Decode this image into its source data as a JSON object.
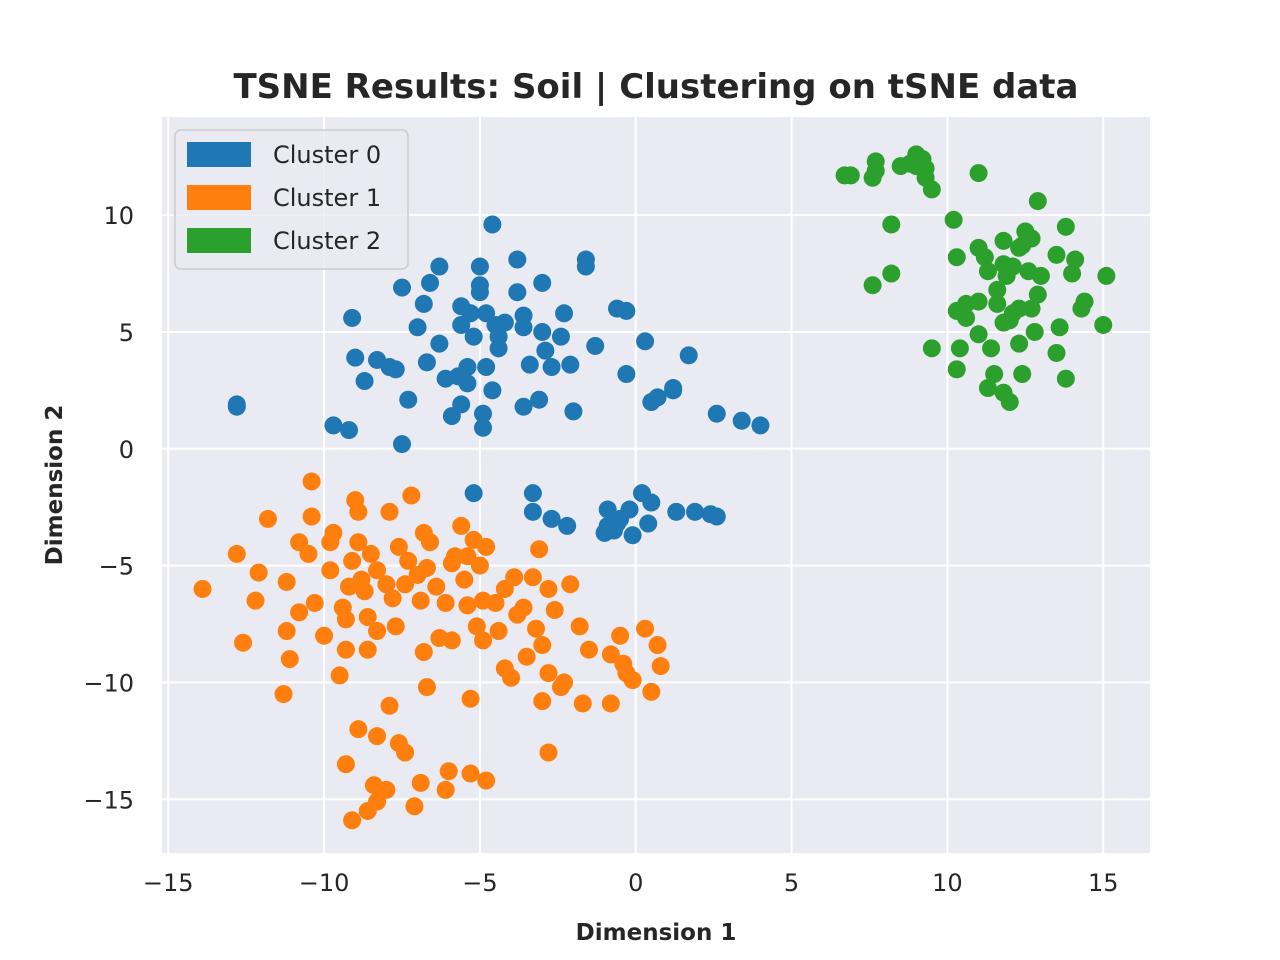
{
  "chart_data": {
    "type": "scatter",
    "title": "TSNE Results: Soil | Clustering on tSNE data",
    "xlabel": "Dimension 1",
    "ylabel": "Dimension 2",
    "xlim": [
      -15.2,
      16.5
    ],
    "ylim": [
      -17.3,
      14.2
    ],
    "xticks": [
      -15,
      -10,
      -5,
      0,
      5,
      10,
      15
    ],
    "yticks": [
      -15,
      -10,
      -5,
      0,
      5,
      10
    ],
    "xtick_labels": [
      "−15",
      "−10",
      "−5",
      "0",
      "5",
      "10",
      "15"
    ],
    "ytick_labels": [
      "−15",
      "−10",
      "−5",
      "0",
      "5",
      "10"
    ],
    "grid": true,
    "legend_position": "top-left",
    "background_color": "#eaeaf2",
    "series": [
      {
        "name": "Cluster 0",
        "color": "#1f77b4",
        "points": [
          [
            -4.6,
            9.6
          ],
          [
            -3.8,
            8.1
          ],
          [
            -1.6,
            8.1
          ],
          [
            -1.6,
            7.8
          ],
          [
            -6.3,
            7.8
          ],
          [
            -5.0,
            7.8
          ],
          [
            -7.5,
            6.9
          ],
          [
            -6.6,
            7.1
          ],
          [
            -5.0,
            7.0
          ],
          [
            -5.0,
            6.7
          ],
          [
            -3.0,
            7.1
          ],
          [
            -3.8,
            6.7
          ],
          [
            -6.8,
            6.2
          ],
          [
            -5.6,
            6.1
          ],
          [
            -5.3,
            5.8
          ],
          [
            -4.8,
            5.8
          ],
          [
            -9.1,
            5.6
          ],
          [
            -2.3,
            5.8
          ],
          [
            -0.6,
            6.0
          ],
          [
            -0.3,
            5.9
          ],
          [
            -7.0,
            5.2
          ],
          [
            -5.6,
            5.3
          ],
          [
            -4.5,
            5.3
          ],
          [
            -4.2,
            5.4
          ],
          [
            -3.6,
            5.7
          ],
          [
            -3.6,
            5.2
          ],
          [
            -3.0,
            5.0
          ],
          [
            -2.4,
            4.8
          ],
          [
            -6.3,
            4.5
          ],
          [
            -5.2,
            4.8
          ],
          [
            -4.4,
            4.8
          ],
          [
            -4.4,
            4.3
          ],
          [
            -2.9,
            4.2
          ],
          [
            -1.3,
            4.4
          ],
          [
            0.3,
            4.6
          ],
          [
            1.7,
            4.0
          ],
          [
            -9.0,
            3.9
          ],
          [
            -8.3,
            3.8
          ],
          [
            -7.9,
            3.5
          ],
          [
            -7.7,
            3.4
          ],
          [
            -6.7,
            3.7
          ],
          [
            -5.4,
            3.5
          ],
          [
            -4.8,
            3.5
          ],
          [
            -3.4,
            3.6
          ],
          [
            -2.7,
            3.5
          ],
          [
            -2.1,
            3.6
          ],
          [
            -8.7,
            2.9
          ],
          [
            -6.1,
            3.0
          ],
          [
            -5.7,
            3.1
          ],
          [
            -5.4,
            2.8
          ],
          [
            -0.3,
            3.2
          ],
          [
            -4.6,
            2.5
          ],
          [
            -7.3,
            2.1
          ],
          [
            -3.1,
            2.1
          ],
          [
            -12.8,
            1.9
          ],
          [
            -12.8,
            1.8
          ],
          [
            -5.6,
            1.9
          ],
          [
            -3.6,
            1.8
          ],
          [
            -2.0,
            1.6
          ],
          [
            0.5,
            2.0
          ],
          [
            0.7,
            2.2
          ],
          [
            1.2,
            2.6
          ],
          [
            1.2,
            2.5
          ],
          [
            -5.9,
            1.4
          ],
          [
            -4.9,
            1.5
          ],
          [
            2.6,
            1.5
          ],
          [
            3.4,
            1.2
          ],
          [
            4.0,
            1.0
          ],
          [
            -9.7,
            1.0
          ],
          [
            -9.2,
            0.8
          ],
          [
            -4.9,
            0.9
          ],
          [
            -7.5,
            0.2
          ],
          [
            -5.2,
            -1.9
          ],
          [
            -3.3,
            -1.9
          ],
          [
            0.2,
            -1.9
          ],
          [
            0.5,
            -2.3
          ],
          [
            -0.9,
            -2.6
          ],
          [
            -0.2,
            -2.6
          ],
          [
            -3.3,
            -2.7
          ],
          [
            1.3,
            -2.7
          ],
          [
            1.9,
            -2.7
          ],
          [
            2.4,
            -2.8
          ],
          [
            2.6,
            -2.9
          ],
          [
            -2.7,
            -3.0
          ],
          [
            -0.5,
            -3.0
          ],
          [
            -0.9,
            -3.3
          ],
          [
            -0.6,
            -3.2
          ],
          [
            0.4,
            -3.2
          ],
          [
            -2.2,
            -3.3
          ],
          [
            -1.0,
            -3.6
          ],
          [
            -0.7,
            -3.5
          ],
          [
            -0.1,
            -3.7
          ]
        ]
      },
      {
        "name": "Cluster 1",
        "color": "#ff7f0e",
        "points": [
          [
            -13.9,
            -6.0
          ],
          [
            -12.8,
            -4.5
          ],
          [
            -12.6,
            -8.3
          ],
          [
            -12.2,
            -6.5
          ],
          [
            -12.1,
            -5.3
          ],
          [
            -11.8,
            -3.0
          ],
          [
            -11.2,
            -5.7
          ],
          [
            -11.2,
            -7.8
          ],
          [
            -11.1,
            -9.0
          ],
          [
            -11.3,
            -10.5
          ],
          [
            -10.8,
            -4.0
          ],
          [
            -10.8,
            -7.0
          ],
          [
            -10.5,
            -4.5
          ],
          [
            -10.4,
            -1.4
          ],
          [
            -10.4,
            -2.9
          ],
          [
            -10.3,
            -6.6
          ],
          [
            -10.0,
            -8.0
          ],
          [
            -9.8,
            -4.0
          ],
          [
            -9.8,
            -5.2
          ],
          [
            -9.7,
            -3.6
          ],
          [
            -9.5,
            -9.7
          ],
          [
            -9.4,
            -6.8
          ],
          [
            -9.3,
            -7.3
          ],
          [
            -9.3,
            -8.6
          ],
          [
            -9.2,
            -5.9
          ],
          [
            -9.1,
            -4.8
          ],
          [
            -9.0,
            -2.2
          ],
          [
            -8.9,
            -2.7
          ],
          [
            -8.9,
            -4.0
          ],
          [
            -8.8,
            -5.6
          ],
          [
            -8.7,
            -6.1
          ],
          [
            -8.6,
            -7.2
          ],
          [
            -8.6,
            -8.6
          ],
          [
            -8.5,
            -4.5
          ],
          [
            -8.3,
            -5.2
          ],
          [
            -8.3,
            -7.8
          ],
          [
            -8.0,
            -5.8
          ],
          [
            -7.9,
            -2.7
          ],
          [
            -7.8,
            -6.4
          ],
          [
            -7.7,
            -7.6
          ],
          [
            -7.6,
            -4.2
          ],
          [
            -7.4,
            -5.8
          ],
          [
            -7.3,
            -4.8
          ],
          [
            -7.2,
            -2.0
          ],
          [
            -7.0,
            -5.4
          ],
          [
            -6.9,
            -6.5
          ],
          [
            -6.8,
            -3.6
          ],
          [
            -6.7,
            -5.1
          ],
          [
            -6.6,
            -4.0
          ],
          [
            -6.4,
            -5.9
          ],
          [
            -6.3,
            -8.1
          ],
          [
            -6.1,
            -6.6
          ],
          [
            -5.9,
            -8.2
          ],
          [
            -5.8,
            -4.6
          ],
          [
            -5.6,
            -3.3
          ],
          [
            -5.5,
            -5.6
          ],
          [
            -5.4,
            -4.6
          ],
          [
            -5.4,
            -6.7
          ],
          [
            -5.2,
            -3.9
          ],
          [
            -5.1,
            -7.6
          ],
          [
            -5.0,
            -5.0
          ],
          [
            -4.9,
            -6.5
          ],
          [
            -4.9,
            -8.2
          ],
          [
            -4.8,
            -4.2
          ],
          [
            -4.5,
            -6.6
          ],
          [
            -4.4,
            -7.8
          ],
          [
            -4.2,
            -6.0
          ],
          [
            -4.2,
            -9.4
          ],
          [
            -3.9,
            -5.5
          ],
          [
            -3.6,
            -6.8
          ],
          [
            -3.5,
            -8.9
          ],
          [
            -3.3,
            -5.5
          ],
          [
            -3.2,
            -7.7
          ],
          [
            -3.1,
            -4.3
          ],
          [
            -3.0,
            -8.4
          ],
          [
            -2.8,
            -6.0
          ],
          [
            -2.8,
            -9.6
          ],
          [
            -2.6,
            -6.9
          ],
          [
            -2.4,
            -10.2
          ],
          [
            -2.3,
            -10.0
          ],
          [
            -2.1,
            -5.8
          ],
          [
            -1.8,
            -7.6
          ],
          [
            -1.7,
            -10.9
          ],
          [
            -1.5,
            -8.6
          ],
          [
            -0.8,
            -8.8
          ],
          [
            -0.8,
            -10.9
          ],
          [
            -0.5,
            -8.0
          ],
          [
            -0.4,
            -9.2
          ],
          [
            -0.3,
            -9.6
          ],
          [
            -0.1,
            -9.9
          ],
          [
            0.3,
            -7.7
          ],
          [
            0.5,
            -10.4
          ],
          [
            0.7,
            -8.4
          ],
          [
            0.8,
            -9.3
          ],
          [
            -6.8,
            -8.7
          ],
          [
            -6.7,
            -10.2
          ],
          [
            -5.3,
            -10.7
          ],
          [
            -5.9,
            -4.9
          ],
          [
            -4.0,
            -9.8
          ],
          [
            -3.0,
            -10.8
          ],
          [
            -8.9,
            -12.0
          ],
          [
            -8.3,
            -12.3
          ],
          [
            -7.9,
            -11.0
          ],
          [
            -7.6,
            -12.6
          ],
          [
            -7.4,
            -13.0
          ],
          [
            -9.3,
            -13.5
          ],
          [
            -8.4,
            -14.4
          ],
          [
            -8.0,
            -14.6
          ],
          [
            -6.9,
            -14.3
          ],
          [
            -6.0,
            -13.8
          ],
          [
            -6.1,
            -14.6
          ],
          [
            -5.3,
            -13.9
          ],
          [
            -4.8,
            -14.2
          ],
          [
            -8.3,
            -15.1
          ],
          [
            -8.6,
            -15.5
          ],
          [
            -7.1,
            -15.3
          ],
          [
            -9.1,
            -15.9
          ],
          [
            -2.8,
            -13.0
          ],
          [
            -3.8,
            -7.1
          ]
        ]
      },
      {
        "name": "Cluster 2",
        "color": "#2ca02c",
        "points": [
          [
            6.7,
            11.7
          ],
          [
            6.9,
            11.7
          ],
          [
            7.6,
            11.6
          ],
          [
            7.7,
            11.9
          ],
          [
            7.7,
            12.3
          ],
          [
            8.5,
            12.1
          ],
          [
            8.8,
            12.2
          ],
          [
            9.0,
            12.6
          ],
          [
            9.2,
            12.4
          ],
          [
            9.3,
            12.0
          ],
          [
            9.3,
            11.6
          ],
          [
            9.5,
            11.1
          ],
          [
            9.0,
            12.1
          ],
          [
            11.0,
            11.8
          ],
          [
            8.2,
            9.6
          ],
          [
            10.2,
            9.8
          ],
          [
            12.9,
            10.6
          ],
          [
            12.5,
            9.3
          ],
          [
            13.8,
            9.5
          ],
          [
            11.8,
            8.9
          ],
          [
            12.7,
            9.0
          ],
          [
            12.3,
            8.6
          ],
          [
            11.0,
            8.6
          ],
          [
            11.2,
            8.2
          ],
          [
            10.3,
            8.2
          ],
          [
            12.4,
            8.7
          ],
          [
            13.5,
            8.3
          ],
          [
            14.1,
            8.1
          ],
          [
            11.8,
            7.9
          ],
          [
            12.1,
            7.8
          ],
          [
            11.3,
            7.6
          ],
          [
            11.9,
            7.4
          ],
          [
            12.6,
            7.6
          ],
          [
            13.0,
            7.4
          ],
          [
            14.0,
            7.5
          ],
          [
            15.1,
            7.4
          ],
          [
            8.2,
            7.5
          ],
          [
            7.6,
            7.0
          ],
          [
            11.6,
            6.8
          ],
          [
            12.9,
            6.6
          ],
          [
            10.6,
            6.2
          ],
          [
            11.0,
            6.3
          ],
          [
            11.6,
            6.2
          ],
          [
            12.3,
            6.0
          ],
          [
            12.1,
            5.8
          ],
          [
            12.7,
            6.0
          ],
          [
            14.4,
            6.3
          ],
          [
            14.3,
            6.0
          ],
          [
            10.3,
            5.9
          ],
          [
            10.6,
            5.6
          ],
          [
            11.8,
            5.4
          ],
          [
            12.0,
            5.5
          ],
          [
            11.0,
            4.9
          ],
          [
            12.3,
            4.5
          ],
          [
            12.8,
            5.0
          ],
          [
            13.6,
            5.2
          ],
          [
            15.0,
            5.3
          ],
          [
            9.5,
            4.3
          ],
          [
            10.4,
            4.3
          ],
          [
            11.4,
            4.3
          ],
          [
            13.5,
            4.1
          ],
          [
            10.3,
            3.4
          ],
          [
            11.5,
            3.2
          ],
          [
            12.4,
            3.2
          ],
          [
            13.8,
            3.0
          ],
          [
            11.3,
            2.6
          ],
          [
            11.8,
            2.4
          ],
          [
            12.0,
            2.0
          ]
        ]
      }
    ]
  }
}
